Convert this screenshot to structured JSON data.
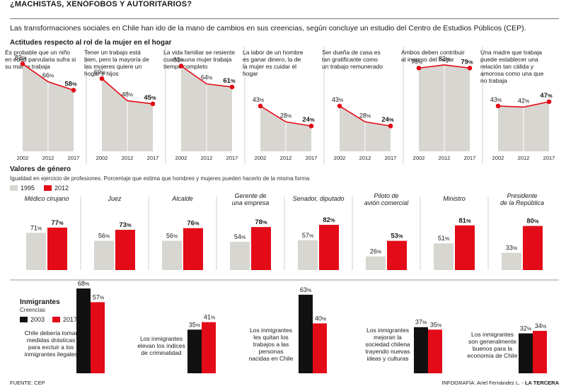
{
  "title": "¿MACHISTAS, XENÓFOBOS Y AUTORITARIOS?",
  "intro": "Las transformaciones sociales en Chile han ido de la mano de cambios en sus creencias, según concluye un estudio del Centro de Estudios Públicos (CEP).",
  "footer": {
    "source": "FUENTE: CEP",
    "credit_prefix": "INFOGRAFÍA: Ariel Fernández L. - ",
    "credit_brand": "LA TERCERA"
  },
  "colors": {
    "area": "#d7d6d0",
    "red": "#e30b17",
    "gray_bar": "#d7d6d0",
    "black": "#111111",
    "divider": "#cfcfcf"
  },
  "chart_data": [
    {
      "id": "actitudes",
      "type": "area",
      "title": "Actitudes respecto al rol de la mujer en el hogar",
      "x": [
        "2002",
        "2012",
        "2017"
      ],
      "ylim": [
        0,
        100
      ],
      "panels": [
        {
          "label": [
            "Es probable que un niño",
            "en edad parvularia sufra si",
            "su madre trabaja"
          ],
          "values": [
            83,
            66,
            58
          ]
        },
        {
          "label": [
            "Tener un trabajo está",
            "bien, pero la mayoría de",
            "las mujeres quiere un",
            "hogar e hijos"
          ],
          "values": [
            69,
            48,
            45
          ]
        },
        {
          "label": [
            "La vida familiar se resiente",
            "cuando una mujer trabaja",
            "tiempo completo"
          ],
          "values": [
            81,
            64,
            61
          ]
        },
        {
          "label": [
            "La labor de un hombre",
            "es ganar dinero, la de",
            "la mujer es cuidar el",
            "hogar"
          ],
          "values": [
            43,
            28,
            24
          ]
        },
        {
          "label": [
            "Ser dueña de casa es",
            "tan gratificante como",
            "un trabajo remunerado"
          ],
          "values": [
            43,
            28,
            24
          ]
        },
        {
          "label": [
            "Ambos deben contribuir",
            "al ingreso del hogar"
          ],
          "values": [
            79,
            82,
            79
          ]
        },
        {
          "label": [
            "Una madre que trabaja",
            "puede establecer una",
            "relación tan cálida y",
            "amorosa como una que",
            "no trabaja"
          ],
          "values": [
            43,
            42,
            47
          ]
        }
      ]
    },
    {
      "id": "genero",
      "type": "bar",
      "title": "Valores de género",
      "subtitle": "Igualdad en ejercicio de profesiones. Porcentaje que estima que hombres y mujeres pueden hacerlo de la misma forma",
      "series": [
        {
          "name": "1995"
        },
        {
          "name": "2012"
        }
      ],
      "ylim": [
        0,
        100
      ],
      "categories": [
        {
          "label": [
            "Médico cirujano"
          ],
          "values": [
            71,
            77
          ]
        },
        {
          "label": [
            "Juez"
          ],
          "values": [
            56,
            73
          ]
        },
        {
          "label": [
            "Alcalde"
          ],
          "values": [
            56,
            76
          ]
        },
        {
          "label": [
            "Gerente de",
            "una empresa"
          ],
          "values": [
            54,
            78
          ]
        },
        {
          "label": [
            "Senador, diputado"
          ],
          "values": [
            57,
            82
          ]
        },
        {
          "label": [
            "Piloto de",
            "avión comercial"
          ],
          "values": [
            26,
            53
          ]
        },
        {
          "label": [
            "Ministro"
          ],
          "values": [
            51,
            81
          ]
        },
        {
          "label": [
            "Presidente",
            "de la República"
          ],
          "values": [
            33,
            80
          ]
        }
      ]
    },
    {
      "id": "inmigrantes",
      "type": "bar",
      "title": "Inmigrantes",
      "subtitle": "Creencias",
      "series": [
        {
          "name": "2003"
        },
        {
          "name": "2017"
        }
      ],
      "ylim": [
        0,
        100
      ],
      "categories": [
        {
          "label": [
            "Chile debería tomar",
            "medidas drásticas",
            "para excluir a los",
            "inmigrantes ilegales"
          ],
          "values": [
            68,
            57
          ]
        },
        {
          "label": [
            "Los inmigrantes",
            "elevan los índices",
            "de criminalidad"
          ],
          "values": [
            35,
            41
          ]
        },
        {
          "label": [
            "Los inmigrantes",
            "les quitan los",
            "trabajos a las",
            "personas",
            "nacidas en Chile"
          ],
          "values": [
            63,
            40
          ]
        },
        {
          "label": [
            "Los inmigrantes",
            "mejoran la",
            "sociedad chilena",
            "trayendo nuevas",
            "ideas y culturas"
          ],
          "values": [
            37,
            35
          ]
        },
        {
          "label": [
            "Los inmigrantes",
            "son generalmente",
            "buenos para la",
            "economía de Chile"
          ],
          "values": [
            32,
            34
          ]
        }
      ]
    }
  ]
}
